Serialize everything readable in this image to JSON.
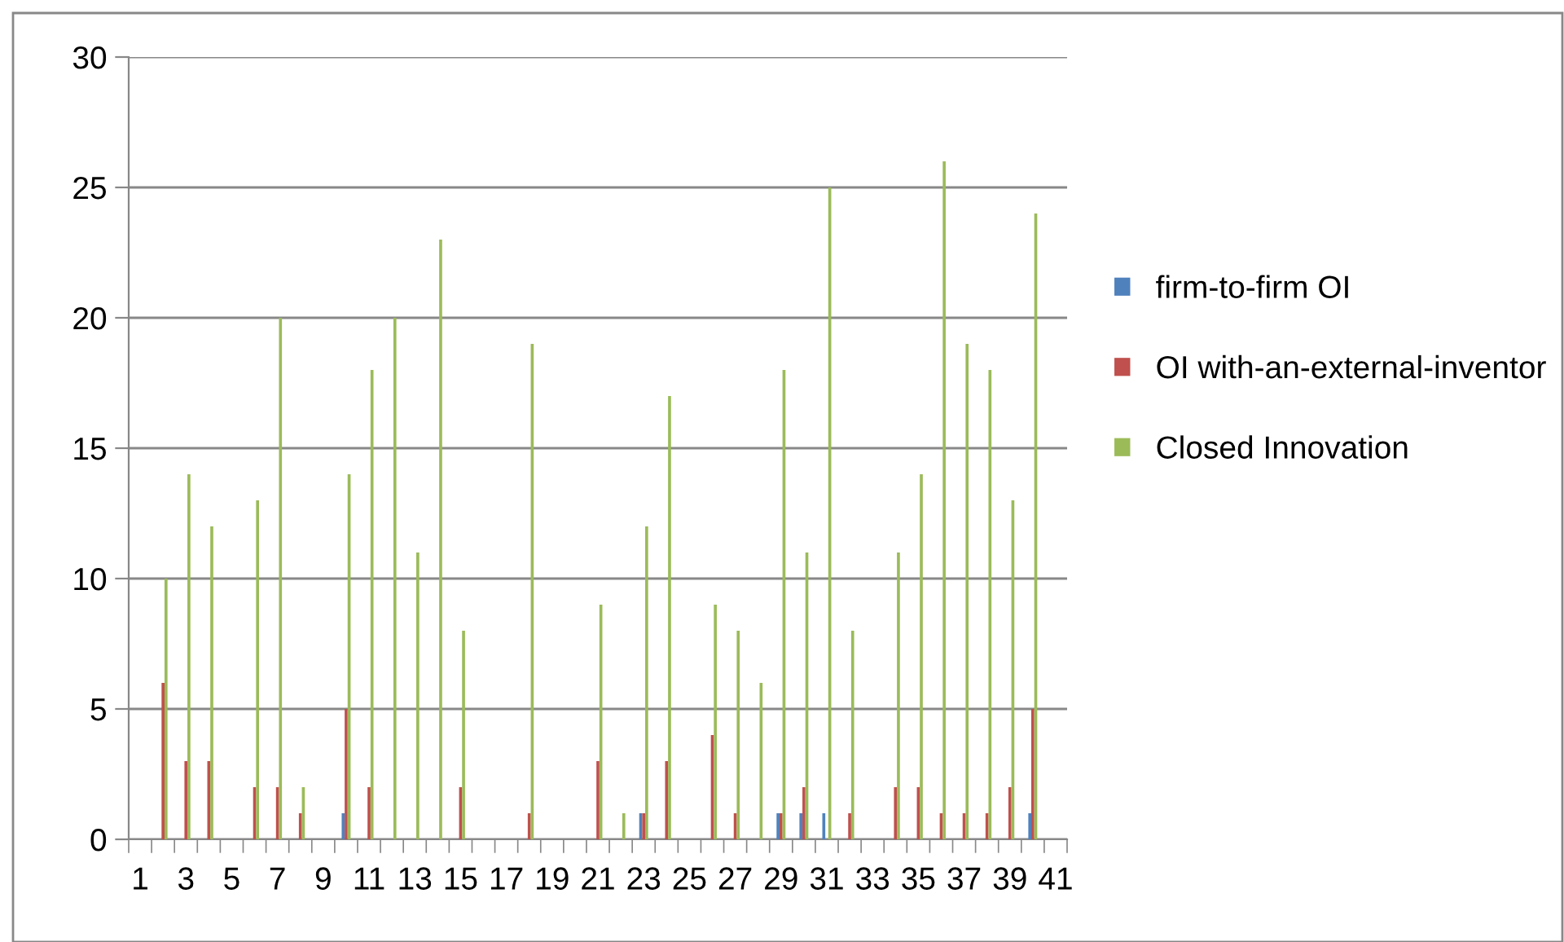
{
  "chart_data": {
    "type": "bar",
    "categories": [
      "1",
      null,
      "3",
      null,
      "5",
      null,
      "7",
      null,
      "9",
      null,
      "11",
      null,
      "13",
      null,
      "15",
      null,
      "17",
      null,
      "19",
      null,
      "21",
      null,
      "23",
      null,
      "25",
      null,
      "27",
      null,
      "29",
      null,
      "31",
      null,
      "33",
      null,
      "35",
      null,
      "37",
      null,
      "39",
      null,
      "41"
    ],
    "series": [
      {
        "name": "firm-to-firm OI",
        "color": "#4f81bd",
        "values": [
          0,
          0,
          0,
          0,
          0,
          0,
          0,
          0,
          0,
          1,
          0,
          0,
          0,
          0,
          0,
          0,
          0,
          0,
          0,
          0,
          0,
          0,
          1,
          0,
          0,
          0,
          0,
          0,
          1,
          1,
          1,
          0,
          0,
          0,
          0,
          0,
          0,
          0,
          0,
          1,
          0
        ]
      },
      {
        "name": "OI with-an-external-inventor",
        "color": "#c0504d",
        "values": [
          0,
          6,
          3,
          3,
          0,
          2,
          2,
          1,
          0,
          5,
          2,
          0,
          0,
          0,
          2,
          0,
          0,
          1,
          0,
          0,
          3,
          0,
          1,
          3,
          0,
          4,
          1,
          0,
          1,
          2,
          0,
          1,
          0,
          2,
          2,
          1,
          1,
          1,
          2,
          5,
          0
        ]
      },
      {
        "name": "Closed Innovation",
        "color": "#9bbb59",
        "values": [
          0,
          10,
          14,
          12,
          0,
          13,
          20,
          2,
          0,
          14,
          18,
          20,
          11,
          23,
          8,
          0,
          0,
          19,
          0,
          0,
          9,
          1,
          12,
          17,
          0,
          9,
          8,
          6,
          18,
          11,
          25,
          8,
          0,
          11,
          14,
          26,
          19,
          18,
          13,
          24,
          0
        ]
      }
    ],
    "ylim": [
      0,
      30
    ],
    "yticks": [
      0,
      5,
      10,
      15,
      20,
      25,
      30
    ],
    "grid": "y",
    "legend": "right"
  }
}
